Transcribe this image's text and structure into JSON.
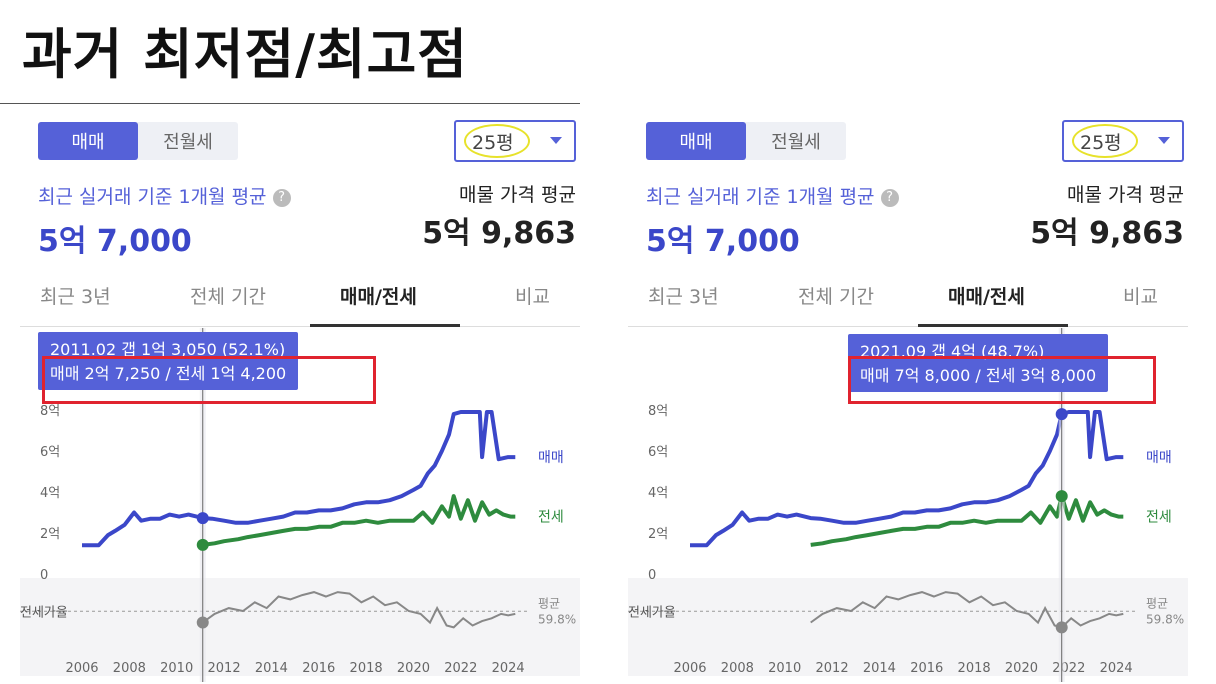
{
  "slide": {
    "title": "과거 최저점/최고점"
  },
  "colors": {
    "accent": "#5561d8",
    "sale": "#3b47c9",
    "jeonse": "#2e8b3e",
    "ratio": "#888888",
    "highlight": "#e0232f",
    "circle": "#e7e22b"
  },
  "panels": [
    {
      "segment": [
        "매매",
        "전월세"
      ],
      "active_segment": 0,
      "size_select": "25평",
      "recent_label": "최근 실거래 기준 1개월 평균",
      "recent_value": "5억 7,000",
      "listing_label": "매물 가격 평균",
      "listing_value": "5억 9,863",
      "tabs": [
        "최근 3년",
        "전체 기간",
        "매매/전세",
        "비교"
      ],
      "active_tab": 2,
      "tooltip": {
        "line1": "2011.02  갭 1억 3,050 (52.1%)",
        "line2": "매매 2억 7,250 / 전세 1억 4,200"
      },
      "cursor": {
        "year": 2011.1,
        "sale": 2.725,
        "jeonse": 1.42,
        "ratio": 52.1
      },
      "y_ticks": [
        "8억",
        "6억",
        "4억",
        "2억",
        "0"
      ],
      "x_ticks": [
        "2006",
        "2008",
        "2010",
        "2012",
        "2014",
        "2016",
        "2018",
        "2020",
        "2022",
        "2024"
      ],
      "series_labels": {
        "sale": "매매",
        "jeonse": "전세"
      },
      "ratio_label": "전세가율",
      "avg_label": "평균",
      "avg_value": "59.8%"
    },
    {
      "segment": [
        "매매",
        "전월세"
      ],
      "active_segment": 0,
      "size_select": "25평",
      "recent_label": "최근 실거래 기준 1개월 평균",
      "recent_value": "5억 7,000",
      "listing_label": "매물 가격 평균",
      "listing_value": "5억 9,863",
      "tabs": [
        "최근 3년",
        "전체 기간",
        "매매/전세",
        "비교"
      ],
      "active_tab": 2,
      "tooltip": {
        "line1": "2021.09  갭 4억 (48.7%)",
        "line2": "매매 7억 8,000 / 전세 3억 8,000"
      },
      "cursor": {
        "year": 2021.7,
        "sale": 7.8,
        "jeonse": 3.8,
        "ratio": 48.7
      },
      "y_ticks": [
        "8억",
        "6억",
        "4억",
        "2억",
        "0"
      ],
      "x_ticks": [
        "2006",
        "2008",
        "2010",
        "2012",
        "2014",
        "2016",
        "2018",
        "2020",
        "2022",
        "2024"
      ],
      "series_labels": {
        "sale": "매매",
        "jeonse": "전세"
      },
      "ratio_label": "전세가율",
      "avg_label": "평균",
      "avg_value": "59.8%"
    }
  ],
  "chart_data": {
    "type": "line",
    "ylabel": "",
    "ylim": [
      0,
      8
    ],
    "y_unit": "억",
    "xlim": [
      2006,
      2024.5
    ],
    "series": [
      {
        "name": "매매",
        "x": [
          2006.0,
          2006.7,
          2007.1,
          2007.4,
          2007.8,
          2008.2,
          2008.5,
          2008.9,
          2009.3,
          2009.7,
          2010.1,
          2010.5,
          2011.1,
          2011.5,
          2012.0,
          2012.5,
          2013.0,
          2013.5,
          2014.0,
          2014.5,
          2015.0,
          2015.5,
          2016.0,
          2016.5,
          2017.0,
          2017.5,
          2018.0,
          2018.5,
          2019.0,
          2019.5,
          2020.0,
          2020.3,
          2020.6,
          2020.9,
          2021.2,
          2021.5,
          2021.7,
          2022.0,
          2022.3,
          2022.6,
          2022.8,
          2022.9,
          2023.1,
          2023.3,
          2023.6,
          2024.0,
          2024.3
        ],
        "values": [
          1.4,
          1.4,
          1.9,
          2.1,
          2.4,
          3.0,
          2.6,
          2.7,
          2.7,
          2.9,
          2.8,
          2.9,
          2.725,
          2.7,
          2.6,
          2.5,
          2.5,
          2.6,
          2.7,
          2.8,
          3.0,
          3.0,
          3.1,
          3.1,
          3.2,
          3.4,
          3.5,
          3.5,
          3.6,
          3.8,
          4.1,
          4.3,
          4.9,
          5.3,
          6.0,
          6.8,
          7.8,
          7.9,
          7.9,
          7.9,
          7.9,
          5.7,
          7.9,
          7.9,
          5.6,
          5.7,
          5.7
        ]
      },
      {
        "name": "전세",
        "x": [
          2011.1,
          2011.6,
          2012.0,
          2012.6,
          2013.0,
          2013.5,
          2014.0,
          2014.5,
          2015.0,
          2015.5,
          2016.0,
          2016.5,
          2017.0,
          2017.5,
          2018.0,
          2018.5,
          2019.0,
          2019.5,
          2020.0,
          2020.4,
          2020.8,
          2021.2,
          2021.5,
          2021.7,
          2022.0,
          2022.3,
          2022.6,
          2022.9,
          2023.2,
          2023.5,
          2023.8,
          2024.1,
          2024.3
        ],
        "values": [
          1.42,
          1.5,
          1.6,
          1.7,
          1.8,
          1.9,
          2.0,
          2.1,
          2.2,
          2.2,
          2.3,
          2.3,
          2.5,
          2.5,
          2.6,
          2.5,
          2.6,
          2.6,
          2.6,
          3.0,
          2.5,
          3.3,
          2.8,
          3.8,
          2.7,
          3.6,
          2.6,
          3.5,
          2.9,
          3.1,
          2.9,
          2.8,
          2.8
        ]
      },
      {
        "name": "전세가율",
        "x": [
          2011.1,
          2011.6,
          2012.2,
          2012.8,
          2013.3,
          2013.8,
          2014.3,
          2014.8,
          2015.3,
          2015.8,
          2016.3,
          2016.8,
          2017.3,
          2017.8,
          2018.3,
          2018.8,
          2019.3,
          2019.8,
          2020.3,
          2020.7,
          2021.0,
          2021.4,
          2021.7,
          2022.1,
          2022.5,
          2022.9,
          2023.3,
          2023.7,
          2024.0,
          2024.3
        ],
        "values": [
          52.1,
          58,
          62,
          60,
          66,
          62,
          70,
          68,
          71,
          73,
          70,
          73,
          72,
          66,
          70,
          64,
          66,
          60,
          58,
          52,
          62,
          50,
          48.7,
          55,
          50,
          53,
          55,
          58,
          57,
          58
        ]
      }
    ],
    "ratio_avg": 59.8
  }
}
